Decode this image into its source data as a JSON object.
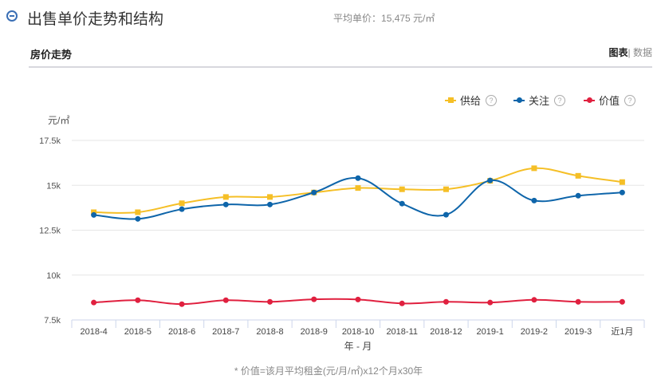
{
  "header": {
    "title": "出售单价走势和结构",
    "avg_label": "平均单价：",
    "avg_value": "15,475 元/㎡"
  },
  "section": {
    "title": "房价走势",
    "view_chart": "图表",
    "view_sep": "|",
    "view_data": "数据"
  },
  "footnote": "* 价值=该月平均租金(元/月/㎡)x12个月x30年",
  "colors": {
    "supply": "#f5bf26",
    "attention": "#0e65aa",
    "value": "#e0203f"
  },
  "chart_data": {
    "type": "line",
    "ylabel": "元/㎡",
    "xlabel": "年 - 月",
    "ylim": [
      7500,
      17500
    ],
    "yticks": [
      7500,
      10000,
      12500,
      15000,
      17500
    ],
    "ytick_labels": [
      "7.5k",
      "10k",
      "12.5k",
      "15k",
      "17.5k"
    ],
    "grid": true,
    "legend_position": "top-right",
    "categories": [
      "2018-4",
      "2018-5",
      "2018-6",
      "2018-7",
      "2018-8",
      "2018-9",
      "2018-10",
      "2018-11",
      "2018-12",
      "2019-1",
      "2019-2",
      "2019-3",
      "近1月"
    ],
    "series": [
      {
        "name": "供给",
        "help": "?",
        "marker": "square",
        "values": [
          13500,
          13500,
          14000,
          14350,
          14350,
          14600,
          14850,
          14780,
          14780,
          15250,
          15950,
          15530,
          15180
        ]
      },
      {
        "name": "关注",
        "help": "?",
        "marker": "circle",
        "values": [
          13350,
          13130,
          13670,
          13930,
          13930,
          14600,
          15400,
          13980,
          13360,
          15270,
          14150,
          14420,
          14600
        ]
      },
      {
        "name": "价值",
        "help": "?",
        "marker": "circle",
        "values": [
          8470,
          8600,
          8380,
          8600,
          8510,
          8650,
          8640,
          8420,
          8510,
          8470,
          8620,
          8510,
          8510
        ]
      }
    ]
  }
}
